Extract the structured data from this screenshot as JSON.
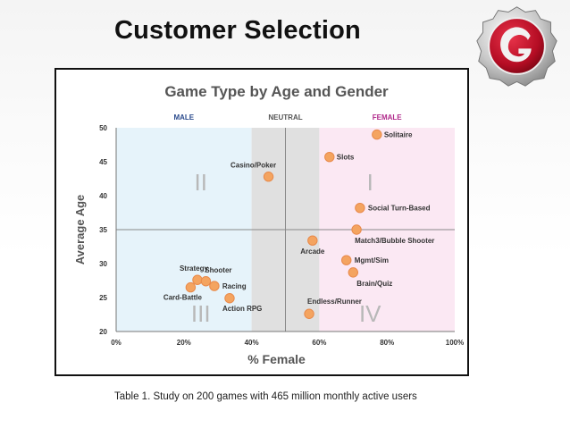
{
  "slide": {
    "title": "Customer Selection",
    "caption": "Table 1. Study on 200 games with 465 million monthly active users"
  },
  "logo": {
    "icon": "garena-logo-icon",
    "ring_color": "#c0c0c0",
    "disc_color": "#c8102e"
  },
  "chart_data": {
    "type": "scatter",
    "title": "Game Type by Age and Gender",
    "xlabel": "% Female",
    "ylabel": "Average Age",
    "xlim": [
      0,
      100
    ],
    "ylim": [
      20,
      50
    ],
    "x_ticks": [
      "0%",
      "20%",
      "40%",
      "60%",
      "80%",
      "100%"
    ],
    "y_ticks": [
      "20",
      "25",
      "30",
      "35",
      "40",
      "45",
      "50"
    ],
    "zones": [
      {
        "label": "MALE",
        "from": 0,
        "to": 40,
        "color": "#e6f3fa",
        "label_color": "#2a4a8c"
      },
      {
        "label": "NEUTRAL",
        "from": 40,
        "to": 60,
        "color": "#e0e0e0",
        "label_color": "#555555"
      },
      {
        "label": "FEMALE",
        "from": 60,
        "to": 100,
        "color": "#fbe8f3",
        "label_color": "#b0288a"
      }
    ],
    "quadrants": [
      {
        "label": "I",
        "x": 75,
        "y": 42
      },
      {
        "label": "II",
        "x": 25,
        "y": 42
      },
      {
        "label": "III",
        "x": 25,
        "y": 22.6
      },
      {
        "label": "IV",
        "x": 75,
        "y": 22.6
      }
    ],
    "divider_x": 50,
    "divider_y": 35,
    "point_color": "#f4a460",
    "points": [
      {
        "label": "Solitaire",
        "x": 77,
        "y": 49.0
      },
      {
        "label": "Slots",
        "x": 63,
        "y": 45.7
      },
      {
        "label": "Casino/Poker",
        "x": 45,
        "y": 42.8
      },
      {
        "label": "Social Turn-Based",
        "x": 72,
        "y": 38.2
      },
      {
        "label": "Match3/Bubble Shooter",
        "x": 71,
        "y": 35.0
      },
      {
        "label": "Arcade",
        "x": 58,
        "y": 33.4
      },
      {
        "label": "Mgmt/Sim",
        "x": 68,
        "y": 30.5
      },
      {
        "label": "Brain/Quiz",
        "x": 70,
        "y": 28.7
      },
      {
        "label": "Strategy",
        "x": 24,
        "y": 27.6
      },
      {
        "label": "Shooter",
        "x": 26.5,
        "y": 27.4
      },
      {
        "label": "Racing",
        "x": 29,
        "y": 26.7
      },
      {
        "label": "Card-Battle",
        "x": 22,
        "y": 26.5
      },
      {
        "label": "Action RPG",
        "x": 33.5,
        "y": 24.9
      },
      {
        "label": "Endless/Runner",
        "x": 57,
        "y": 22.6
      }
    ]
  }
}
